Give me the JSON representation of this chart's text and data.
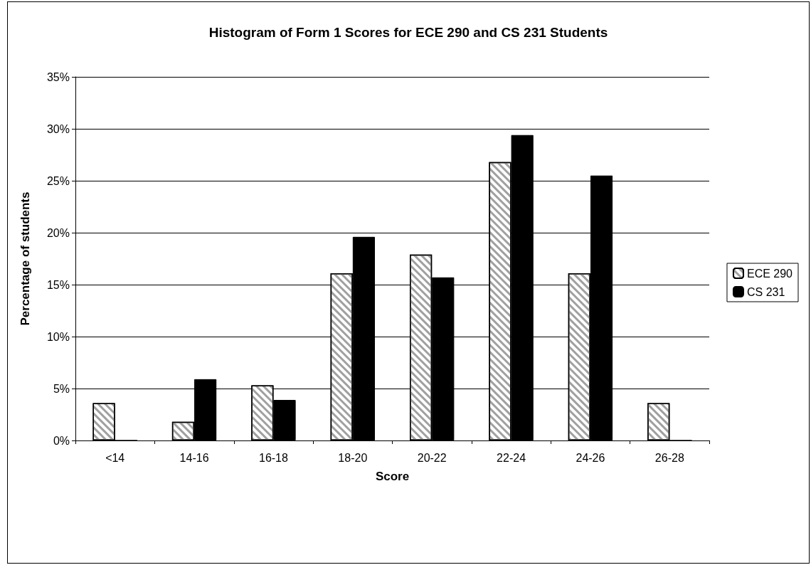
{
  "chart_data": {
    "type": "bar",
    "title": "Histogram of Form 1 Scores for ECE 290 and CS 231 Students",
    "xlabel": "Score",
    "ylabel": "Percentage of students",
    "categories": [
      "<14",
      "14-16",
      "16-18",
      "18-20",
      "20-22",
      "22-24",
      "24-26",
      "26-28"
    ],
    "series": [
      {
        "name": "ECE 290",
        "color": "#ffffff",
        "values": [
          3.6,
          1.8,
          5.3,
          16.1,
          17.9,
          26.8,
          16.1,
          3.6
        ]
      },
      {
        "name": "CS 231",
        "color": "#000000",
        "values": [
          0,
          5.9,
          3.9,
          19.6,
          15.7,
          29.4,
          25.5,
          0
        ]
      }
    ],
    "ylim": [
      0,
      35
    ],
    "yticks": [
      {
        "value": 0,
        "label": "0%"
      },
      {
        "value": 5,
        "label": "5%"
      },
      {
        "value": 10,
        "label": "10%"
      },
      {
        "value": 15,
        "label": "15%"
      },
      {
        "value": 20,
        "label": "20%"
      },
      {
        "value": 25,
        "label": "25%"
      },
      {
        "value": 30,
        "label": "30%"
      },
      {
        "value": 35,
        "label": "35%"
      }
    ],
    "grid": "y",
    "legend": "right"
  }
}
